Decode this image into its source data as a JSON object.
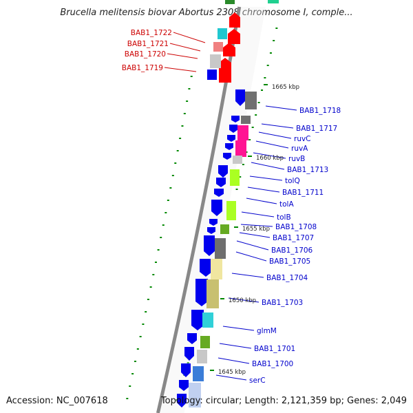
{
  "title": "Brucella melitensis biovar Abortus 2308 chromosome I, comple...",
  "footer": {
    "accession": "Accession: NC_007618",
    "topology": "Topology: circular; Length: 2,121,359 bp; Genes: 2,049"
  },
  "colors": {
    "forward_label": "#cc0000",
    "reverse_label": "#0000cc",
    "tick": "#008800",
    "backbone": "#888888"
  },
  "scale_marks": [
    "1665 kbp",
    "1660 kbp",
    "1655 kbp",
    "1650 kbp",
    "1645 kbp"
  ],
  "forward_genes": [
    {
      "label": "BAB1_1722",
      "color": "#ff0000"
    },
    {
      "label": "BAB1_1721",
      "color": "#ff0000"
    },
    {
      "label": "BAB1_1720",
      "color": "#ff0000"
    },
    {
      "label": "BAB1_1719",
      "color": "#ff0000"
    }
  ],
  "reverse_genes": [
    {
      "label": "BAB1_1718",
      "color": "#0000ee"
    },
    {
      "label": "BAB1_1717",
      "color": "#0000ee"
    },
    {
      "label": "ruvC",
      "color": "#0000ee"
    },
    {
      "label": "ruvA",
      "color": "#0000ee"
    },
    {
      "label": "ruvB",
      "color": "#0000ee"
    },
    {
      "label": "BAB1_1713",
      "color": "#0000ee"
    },
    {
      "label": "tolQ",
      "color": "#0000ee"
    },
    {
      "label": "BAB1_1711",
      "color": "#0000ee"
    },
    {
      "label": "tolA",
      "color": "#0000ee"
    },
    {
      "label": "tolB",
      "color": "#0000ee"
    },
    {
      "label": "BAB1_1708",
      "color": "#0000ee"
    },
    {
      "label": "BAB1_1707",
      "color": "#0000ee"
    },
    {
      "label": "BAB1_1706",
      "color": "#0000ee"
    },
    {
      "label": "BAB1_1705",
      "color": "#0000ee"
    },
    {
      "label": "BAB1_1704",
      "color": "#0000ee"
    },
    {
      "label": "BAB1_1703",
      "color": "#0000ee"
    },
    {
      "label": "glmM",
      "color": "#0000ee"
    },
    {
      "label": "BAB1_1701",
      "color": "#0000ee"
    },
    {
      "label": "BAB1_1700",
      "color": "#0000ee"
    },
    {
      "label": "serC",
      "color": "#0000ee"
    }
  ]
}
